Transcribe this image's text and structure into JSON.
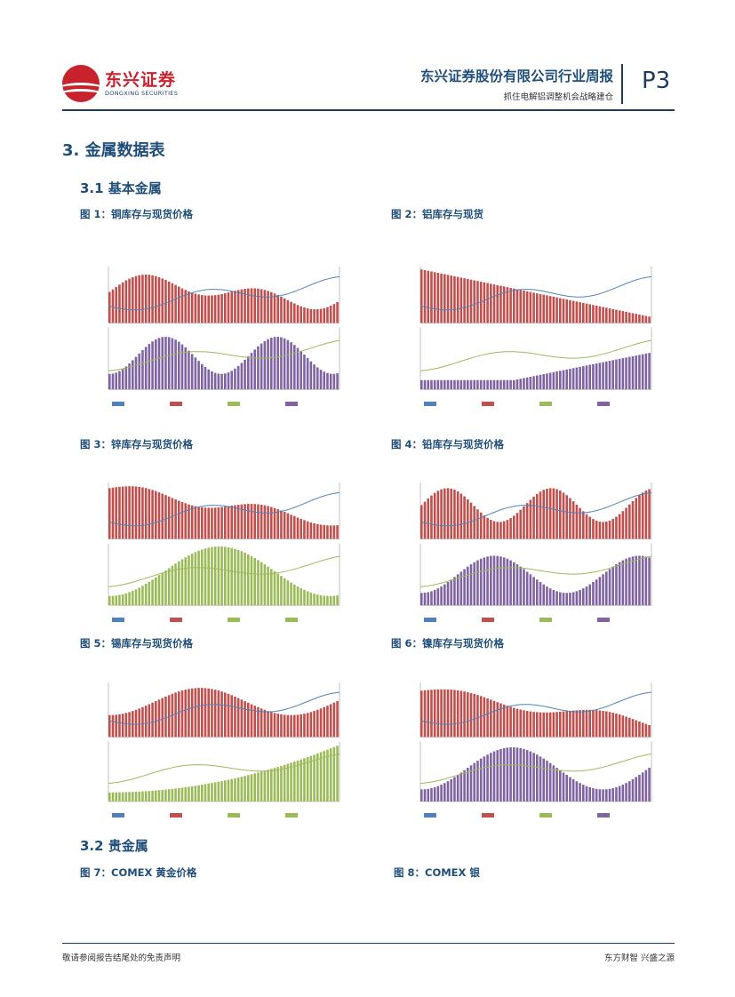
{
  "header": {
    "logo_cn": "东兴证券",
    "logo_en": "DONGXING SECURITIES",
    "title": "东兴证券股份有限公司行业周报",
    "subtitle": "抓住电解铝调整机会战略建仓",
    "page": "P3"
  },
  "section": {
    "heading": "3. 金属数据表",
    "sub1": "3.1  基本金属",
    "sub2": "3.2  贵金属"
  },
  "figures": [
    {
      "caption": "图 1：铜库存与现货价格"
    },
    {
      "caption": "图 2：铝库存与现货"
    },
    {
      "caption": "图 3：锌库存与现货价格"
    },
    {
      "caption": "图 4：铅库存与现货价格"
    },
    {
      "caption": "图 5：锡库存与现货价格"
    },
    {
      "caption": "图 6：镍库存与现货价格"
    },
    {
      "caption": "图 7：COMEX 黄金价格"
    },
    {
      "caption": "图 8：COMEX 银"
    }
  ],
  "footer": {
    "left": "敬请参阅报告结尾处的免责声明",
    "right": "东方财智 兴盛之源"
  },
  "colors": {
    "brand": "#c8232c",
    "navy": "#1f4e79",
    "bar_red": "#c0504d",
    "bar_purple": "#8064a2",
    "bar_green": "#9bbb59",
    "line_blue": "#4f81bd"
  }
}
